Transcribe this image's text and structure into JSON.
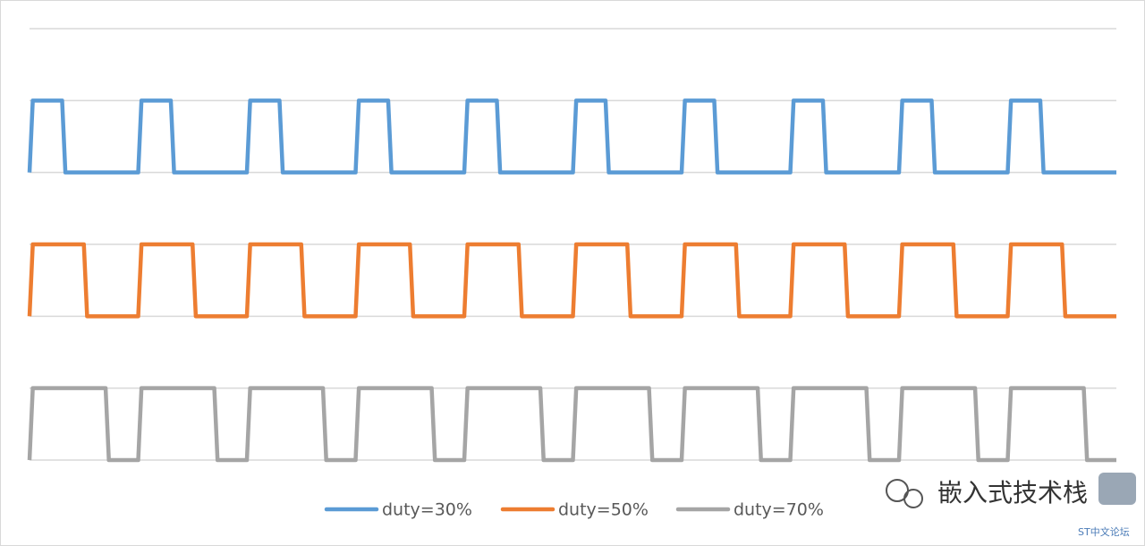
{
  "chart_data": {
    "type": "line",
    "xlim": [
      0,
      100
    ],
    "ylim": [
      0,
      6
    ],
    "yticks": [
      0,
      1,
      2,
      3,
      4,
      5,
      6
    ],
    "grid": true,
    "legend": "bottom",
    "series": [
      {
        "name": "duty=30%",
        "color": "#5b9bd5",
        "x": [
          0,
          0.3,
          3,
          3.3,
          10,
          10.3,
          13,
          13.3,
          20,
          20.3,
          23,
          23.3,
          30,
          30.3,
          33,
          33.3,
          40,
          40.3,
          43,
          43.3,
          50,
          50.3,
          53,
          53.3,
          60,
          60.3,
          63,
          63.3,
          70,
          70.3,
          73,
          73.3,
          80,
          80.3,
          83,
          83.3,
          90,
          90.3,
          93,
          93.3,
          100
        ],
        "values": [
          4,
          5,
          5,
          4,
          4,
          5,
          5,
          4,
          4,
          5,
          5,
          4,
          4,
          5,
          5,
          4,
          4,
          5,
          5,
          4,
          4,
          5,
          5,
          4,
          4,
          5,
          5,
          4,
          4,
          5,
          5,
          4,
          4,
          5,
          5,
          4,
          4,
          5,
          5,
          4,
          4
        ]
      },
      {
        "name": "duty=50%",
        "color": "#ed7d31",
        "x": [
          0,
          0.3,
          5,
          5.3,
          10,
          10.3,
          15,
          15.3,
          20,
          20.3,
          25,
          25.3,
          30,
          30.3,
          35,
          35.3,
          40,
          40.3,
          45,
          45.3,
          50,
          50.3,
          55,
          55.3,
          60,
          60.3,
          65,
          65.3,
          70,
          70.3,
          75,
          75.3,
          80,
          80.3,
          85,
          85.3,
          90,
          90.3,
          95,
          95.3,
          100
        ],
        "values": [
          2,
          3,
          3,
          2,
          2,
          3,
          3,
          2,
          2,
          3,
          3,
          2,
          2,
          3,
          3,
          2,
          2,
          3,
          3,
          2,
          2,
          3,
          3,
          2,
          2,
          3,
          3,
          2,
          2,
          3,
          3,
          2,
          2,
          3,
          3,
          2,
          2,
          3,
          3,
          2,
          2
        ]
      },
      {
        "name": "duty=70%",
        "color": "#a5a5a5",
        "x": [
          0,
          0.3,
          7,
          7.3,
          10,
          10.3,
          17,
          17.3,
          20,
          20.3,
          27,
          27.3,
          30,
          30.3,
          37,
          37.3,
          40,
          40.3,
          47,
          47.3,
          50,
          50.3,
          57,
          57.3,
          60,
          60.3,
          67,
          67.3,
          70,
          70.3,
          77,
          77.3,
          80,
          80.3,
          87,
          87.3,
          90,
          90.3,
          97,
          97.3,
          100
        ],
        "values": [
          0,
          1,
          1,
          0,
          0,
          1,
          1,
          0,
          0,
          1,
          1,
          0,
          0,
          1,
          1,
          0,
          0,
          1,
          1,
          0,
          0,
          1,
          1,
          0,
          0,
          1,
          1,
          0,
          0,
          1,
          1,
          0,
          0,
          1,
          1,
          0,
          0,
          1,
          1,
          0,
          0
        ]
      }
    ]
  },
  "watermark": {
    "text": "嵌入式技术栈",
    "source": "ST中文论坛"
  }
}
